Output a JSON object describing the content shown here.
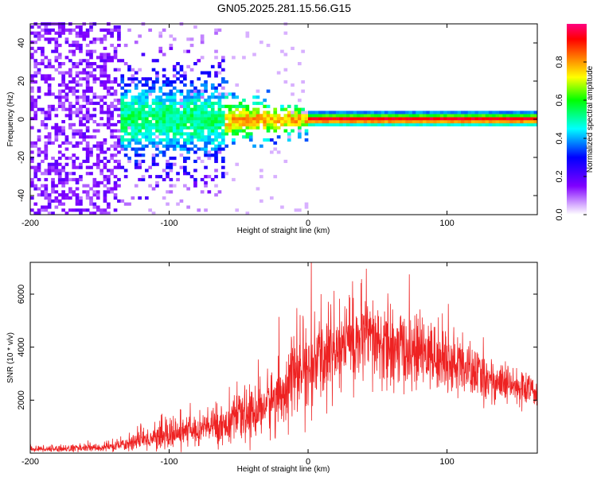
{
  "title": "GN05.2025.281.15.56.G15",
  "chart_data": [
    {
      "type": "heatmap",
      "xlabel": "Height of straight line (km)",
      "ylabel": "Frequency (Hz)",
      "xlim": [
        -200,
        165
      ],
      "ylim": [
        -50,
        50
      ],
      "xticks": [
        -200,
        -100,
        0,
        100
      ],
      "xtick_labels": [
        "-200",
        "-100",
        "0",
        "100"
      ],
      "yticks": [
        -40,
        -20,
        0,
        20,
        40
      ],
      "ytick_labels": [
        "-40",
        "-20",
        "0",
        "20",
        "40"
      ],
      "colorbar": {
        "label": "Normalized spectral amplitude",
        "range": [
          0,
          1
        ],
        "ticks": [
          0,
          0.2,
          0.4,
          0.6,
          0.8
        ],
        "tick_labels": [
          "0.0",
          "0.2",
          "0.4",
          "0.6",
          "0.8"
        ],
        "colormap": [
          "#ffffff",
          "#8000ff",
          "#0000ff",
          "#00ffff",
          "#00ff00",
          "#ffff00",
          "#ff8000",
          "#ff0000",
          "#ff0080"
        ]
      },
      "description_regions": [
        {
          "x_range": [
            -200,
            -135
          ],
          "freq_spread": 50,
          "amplitude": 0.15
        },
        {
          "x_range": [
            -135,
            -60
          ],
          "freq_spread": 15,
          "amplitude": 0.3
        },
        {
          "x_range": [
            -60,
            0
          ],
          "freq_spread": 5,
          "amplitude": 0.6
        },
        {
          "x_range": [
            0,
            165
          ],
          "freq_spread": 2,
          "amplitude": 0.9
        }
      ]
    },
    {
      "type": "line",
      "xlabel": "Height of straight line (km)",
      "ylabel": "SNR (10 * v/v)",
      "xlim": [
        -200,
        165
      ],
      "ylim": [
        0,
        7200
      ],
      "xticks": [
        -200,
        -100,
        0,
        100
      ],
      "xtick_labels": [
        "-200",
        "-100",
        "0",
        "100"
      ],
      "yticks": [
        2000,
        4000,
        6000
      ],
      "ytick_labels": [
        "2000",
        "4000",
        "6000"
      ],
      "series": [
        {
          "name": "SNR",
          "color": "#ee2222",
          "envelope_x": [
            -200,
            -150,
            -135,
            -120,
            -100,
            -80,
            -60,
            -40,
            -20,
            -10,
            0,
            10,
            20,
            30,
            40,
            50,
            60,
            80,
            100,
            120,
            140,
            165
          ],
          "envelope_mean": [
            150,
            200,
            300,
            500,
            650,
            900,
            1100,
            1500,
            2200,
            3000,
            3100,
            3600,
            3900,
            4200,
            4300,
            4100,
            3900,
            3800,
            3500,
            3000,
            2600,
            2300
          ],
          "envelope_spread": [
            100,
            150,
            200,
            350,
            450,
            550,
            700,
            900,
            1200,
            1300,
            1400,
            1500,
            1500,
            1600,
            1500,
            1500,
            1400,
            1200,
            1100,
            900,
            700,
            500
          ]
        }
      ]
    }
  ]
}
